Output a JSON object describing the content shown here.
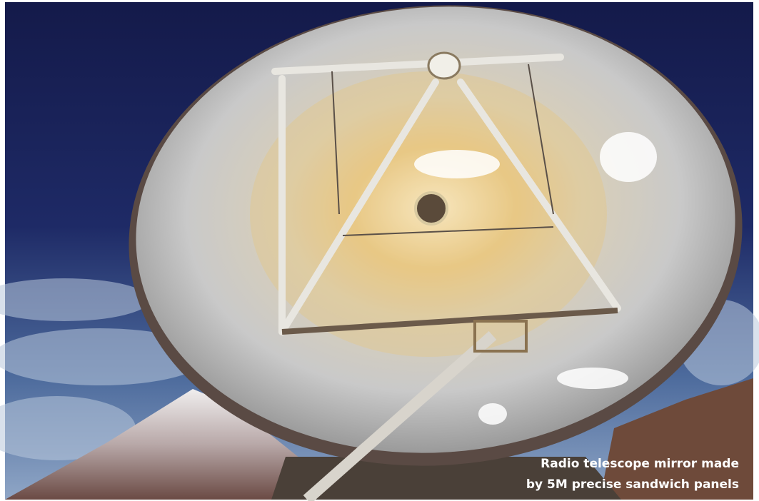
{
  "caption": {
    "line1": "Radio telescope mirror made",
    "line2": "by 5M precise sandwich panels"
  }
}
